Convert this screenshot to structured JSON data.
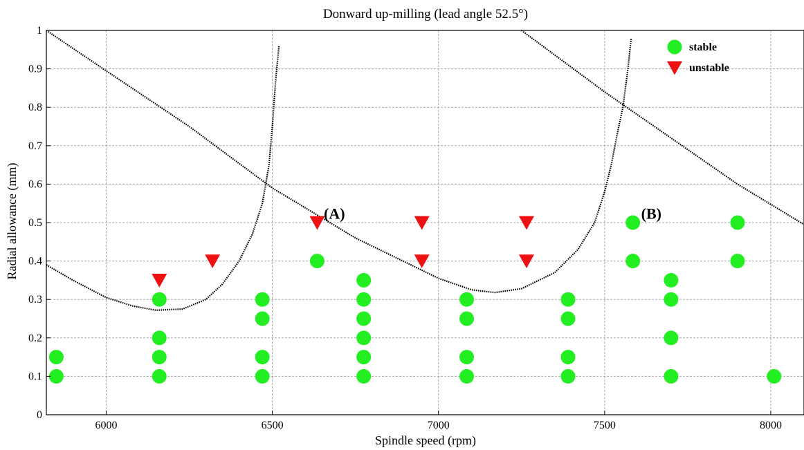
{
  "chart_data": {
    "type": "scatter",
    "title": "Donward up-milling (lead angle 52.5°)",
    "xlabel": "Spindle speed (rpm)",
    "ylabel": "Radial allowance (mm)",
    "xlim": [
      5820,
      8100
    ],
    "ylim": [
      0,
      1
    ],
    "xticks": [
      6000,
      6500,
      7000,
      7500,
      8000
    ],
    "yticks": [
      0,
      0.1,
      0.2,
      0.3,
      0.4,
      0.5,
      0.6,
      0.7,
      0.8,
      0.9,
      1
    ],
    "xtick_labels": [
      "6000",
      "6500",
      "7000",
      "7500",
      "8000"
    ],
    "ytick_labels": [
      "0",
      "0.1",
      "0.2",
      "0.3",
      "0.4",
      "0.5",
      "0.6",
      "0.7",
      "0.8",
      "0.9",
      "1"
    ],
    "grid": true,
    "legend_position": "top-right",
    "colors": {
      "stable": "#22ee22",
      "unstable": "#ee1111",
      "curve": "#000000"
    },
    "series": [
      {
        "name": "stable",
        "marker": "circle",
        "points": [
          [
            5850,
            0.15
          ],
          [
            5850,
            0.1
          ],
          [
            6160,
            0.3
          ],
          [
            6160,
            0.2
          ],
          [
            6160,
            0.15
          ],
          [
            6160,
            0.1
          ],
          [
            6470,
            0.3
          ],
          [
            6470,
            0.25
          ],
          [
            6470,
            0.15
          ],
          [
            6470,
            0.1
          ],
          [
            6635,
            0.4
          ],
          [
            6775,
            0.35
          ],
          [
            6775,
            0.3
          ],
          [
            6775,
            0.25
          ],
          [
            6775,
            0.2
          ],
          [
            6775,
            0.15
          ],
          [
            6775,
            0.1
          ],
          [
            7085,
            0.3
          ],
          [
            7085,
            0.25
          ],
          [
            7085,
            0.15
          ],
          [
            7085,
            0.1
          ],
          [
            7390,
            0.3
          ],
          [
            7390,
            0.25
          ],
          [
            7390,
            0.15
          ],
          [
            7390,
            0.1
          ],
          [
            7585,
            0.5
          ],
          [
            7585,
            0.4
          ],
          [
            7700,
            0.35
          ],
          [
            7700,
            0.3
          ],
          [
            7700,
            0.2
          ],
          [
            7700,
            0.1
          ],
          [
            7900,
            0.5
          ],
          [
            7900,
            0.4
          ],
          [
            8010,
            0.1
          ]
        ]
      },
      {
        "name": "unstable",
        "marker": "triangle-down",
        "points": [
          [
            6160,
            0.35
          ],
          [
            6320,
            0.4
          ],
          [
            6635,
            0.5
          ],
          [
            6950,
            0.5
          ],
          [
            6950,
            0.4
          ],
          [
            7265,
            0.5
          ],
          [
            7265,
            0.4
          ]
        ]
      }
    ],
    "stability_lobes": [
      {
        "points": [
          [
            5820,
            0.39
          ],
          [
            5900,
            0.35
          ],
          [
            6000,
            0.305
          ],
          [
            6080,
            0.283
          ],
          [
            6150,
            0.272
          ],
          [
            6230,
            0.275
          ],
          [
            6300,
            0.3
          ],
          [
            6350,
            0.34
          ],
          [
            6400,
            0.4
          ],
          [
            6440,
            0.47
          ],
          [
            6470,
            0.55
          ],
          [
            6490,
            0.65
          ],
          [
            6500,
            0.75
          ],
          [
            6510,
            0.87
          ],
          [
            6520,
            0.96
          ]
        ]
      },
      {
        "points": [
          [
            5820,
            1.0
          ],
          [
            6000,
            0.895
          ],
          [
            6250,
            0.75
          ],
          [
            6500,
            0.59
          ],
          [
            6750,
            0.46
          ],
          [
            7000,
            0.355
          ],
          [
            7100,
            0.325
          ],
          [
            7170,
            0.318
          ],
          [
            7250,
            0.328
          ],
          [
            7350,
            0.37
          ],
          [
            7420,
            0.43
          ],
          [
            7470,
            0.5
          ],
          [
            7500,
            0.58
          ],
          [
            7520,
            0.65
          ],
          [
            7540,
            0.74
          ],
          [
            7555,
            0.8
          ],
          [
            7570,
            0.9
          ],
          [
            7580,
            0.98
          ]
        ]
      },
      {
        "points": [
          [
            7250,
            1.0
          ],
          [
            7500,
            0.84
          ],
          [
            7700,
            0.72
          ],
          [
            7900,
            0.6
          ],
          [
            8100,
            0.495
          ]
        ]
      }
    ],
    "annotations": [
      {
        "text": "(A)",
        "x": 6655,
        "y": 0.51
      },
      {
        "text": "(B)",
        "x": 7610,
        "y": 0.51
      }
    ]
  }
}
